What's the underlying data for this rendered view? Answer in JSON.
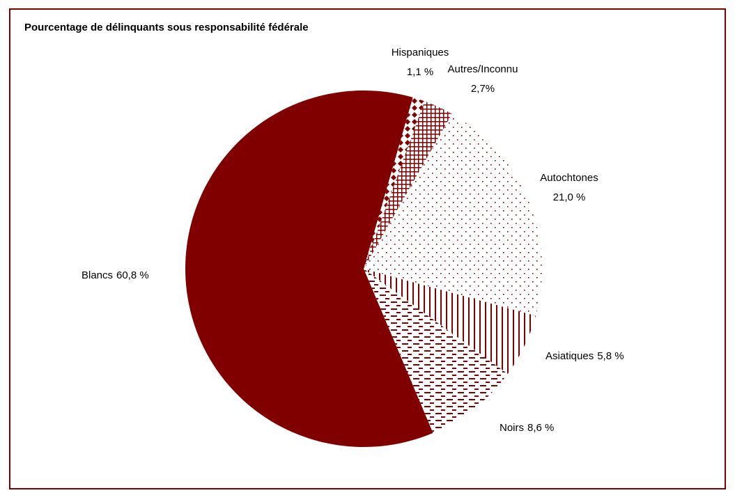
{
  "chart_data": {
    "type": "pie",
    "title": "Pourcentage de délinquants sous responsabilité fédérale",
    "categories": [
      "Hispaniques",
      "Autres/Inconnu",
      "Autochtones",
      "Asiatiques",
      "Noirs",
      "Blancs"
    ],
    "values": [
      1.1,
      2.7,
      21.0,
      5.8,
      8.6,
      60.8
    ],
    "value_labels": [
      "1,1 %",
      "2,7%",
      "21,0 %",
      "5,8 %",
      "8,6 %",
      "60,8 %"
    ],
    "color": "#800000",
    "patterns": [
      "diamonds",
      "grid",
      "dots",
      "vertical",
      "dashes",
      "solid"
    ]
  }
}
